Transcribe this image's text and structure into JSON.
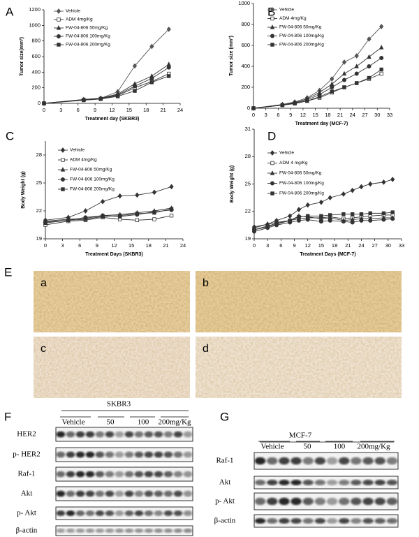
{
  "chart_data": [
    {
      "type": "line",
      "panel": "A",
      "y_label": "Tumor size(mm³)",
      "x_label": "Treatment day (SKBR3)",
      "x": [
        0,
        7,
        10,
        13,
        16,
        19,
        22
      ],
      "xlim": [
        0,
        24
      ],
      "xticks": [
        0,
        3,
        6,
        9,
        12,
        15,
        18,
        21,
        24
      ],
      "ylim": [
        0,
        1200
      ],
      "yticks": [
        0,
        200,
        400,
        600,
        800,
        1000,
        1200
      ],
      "series": [
        {
          "name": "Vehicle",
          "color": "#555555",
          "marker": "diamond",
          "values": [
            0,
            50,
            65,
            150,
            480,
            730,
            950
          ]
        },
        {
          "name": "ADM 4mg/Kg",
          "color": "#333333",
          "marker": "square-open",
          "values": [
            0,
            45,
            60,
            100,
            200,
            280,
            380
          ]
        },
        {
          "name": "FW-04-806 50mg/Kg",
          "color": "#333333",
          "marker": "triangle",
          "values": [
            0,
            50,
            65,
            120,
            250,
            350,
            500
          ]
        },
        {
          "name": "FW-04-806 100mg/Kg",
          "color": "#333333",
          "marker": "circle",
          "values": [
            0,
            45,
            60,
            110,
            220,
            320,
            460
          ]
        },
        {
          "name": "FW-04-806 200mg/Kg",
          "color": "#333333",
          "marker": "square",
          "values": [
            0,
            40,
            55,
            90,
            160,
            270,
            350
          ]
        }
      ]
    },
    {
      "type": "line",
      "panel": "B",
      "y_label": "Tumor size (mm³)",
      "x_label": "Treatment day (MCF-7)",
      "x": [
        0,
        7,
        10,
        13,
        16,
        19,
        22,
        25,
        28,
        31
      ],
      "xlim": [
        0,
        33
      ],
      "xticks": [
        0,
        3,
        6,
        9,
        12,
        15,
        18,
        21,
        24,
        27,
        30,
        33
      ],
      "ylim": [
        0,
        1000
      ],
      "yticks": [
        0,
        200,
        400,
        600,
        800,
        1000
      ],
      "series": [
        {
          "name": "Vehicle",
          "color": "#555555",
          "marker": "diamond",
          "values": [
            0,
            35,
            60,
            100,
            170,
            280,
            440,
            500,
            660,
            780
          ]
        },
        {
          "name": "ADM 4mg/Kg",
          "color": "#333333",
          "marker": "square-open",
          "values": [
            0,
            30,
            45,
            70,
            100,
            150,
            200,
            240,
            280,
            330
          ]
        },
        {
          "name": "FW-04-806 50mg/Kg",
          "color": "#333333",
          "marker": "triangle",
          "values": [
            0,
            35,
            55,
            90,
            150,
            230,
            330,
            400,
            490,
            580
          ]
        },
        {
          "name": "FW-04-806 100mg/Kg",
          "color": "#333333",
          "marker": "circle",
          "values": [
            0,
            30,
            50,
            80,
            130,
            200,
            270,
            330,
            400,
            480
          ]
        },
        {
          "name": "FW-04-806 200mg/Kg",
          "color": "#333333",
          "marker": "square",
          "values": [
            0,
            30,
            45,
            70,
            110,
            160,
            200,
            240,
            290,
            370
          ]
        }
      ]
    },
    {
      "type": "line",
      "panel": "C",
      "y_label": "Body Weight (g)",
      "x_label": "Treatment Days (SKBR3)",
      "x": [
        0,
        4,
        7,
        10,
        13,
        16,
        19,
        22
      ],
      "xlim": [
        0,
        24
      ],
      "xticks": [
        0,
        3,
        6,
        9,
        12,
        15,
        18,
        21,
        24
      ],
      "ylim": [
        19,
        29.5
      ],
      "yticks": [
        19,
        22,
        25,
        28
      ],
      "series": [
        {
          "name": "Vehicle",
          "color": "#333333",
          "marker": "diamond",
          "values": [
            21,
            21.3,
            22,
            23,
            23.6,
            23.7,
            24,
            24.6
          ]
        },
        {
          "name": "ADM 4mg/Kg",
          "color": "#333333",
          "marker": "square-open",
          "values": [
            20.5,
            20.9,
            21,
            21.3,
            21.1,
            21,
            21.1,
            21.5
          ]
        },
        {
          "name": "FW-04-806 50mg/Kg",
          "color": "#333333",
          "marker": "triangle",
          "values": [
            20.9,
            21.1,
            21.2,
            21.5,
            21.6,
            21.8,
            22,
            22.3
          ]
        },
        {
          "name": "FW-04-806 100mg/Kg",
          "color": "#333333",
          "marker": "circle",
          "values": [
            20.8,
            21,
            21.3,
            21.5,
            21.4,
            21.6,
            21.9,
            22.1
          ]
        },
        {
          "name": "FW-04-806 200mg/Kg",
          "color": "#333333",
          "marker": "square",
          "values": [
            20.7,
            21,
            21.1,
            21.4,
            21.5,
            21.7,
            21.8,
            22.2
          ]
        }
      ]
    },
    {
      "type": "line",
      "panel": "D",
      "y_label": "Body Weight (g)",
      "x_label": "Treatment Days (MCF-7)",
      "x": [
        0,
        3,
        5,
        8,
        10,
        12,
        15,
        17,
        20,
        22,
        24,
        26,
        29,
        31
      ],
      "xlim": [
        0,
        33
      ],
      "xticks": [
        0,
        3,
        6,
        9,
        12,
        15,
        18,
        21,
        24,
        27,
        30,
        33
      ],
      "ylim": [
        19,
        31
      ],
      "yticks": [
        19,
        22,
        25,
        28,
        31
      ],
      "series": [
        {
          "name": "Vehicle",
          "color": "#333333",
          "marker": "diamond",
          "values": [
            20.3,
            20.6,
            21,
            21.5,
            22.2,
            22.7,
            23,
            23.5,
            23.9,
            24.3,
            24.7,
            25,
            25.2,
            25.5
          ]
        },
        {
          "name": "ADM 4 mg/Kg",
          "color": "#333333",
          "marker": "square-open",
          "values": [
            20,
            20.3,
            20.6,
            21,
            21.2,
            21.3,
            21.3,
            21.4,
            21.2,
            21.3,
            21.4,
            21.5,
            21.6,
            21.6
          ]
        },
        {
          "name": "FW-04-806 50mg/Kg",
          "color": "#333333",
          "marker": "triangle",
          "values": [
            20.2,
            20.6,
            20.8,
            21,
            21.5,
            21.4,
            21.2,
            21.3,
            21,
            21.1,
            21.2,
            21.2,
            21.3,
            21.3
          ]
        },
        {
          "name": "FW-04-806 100mg/Kg",
          "color": "#333333",
          "marker": "circle",
          "values": [
            19.8,
            20.2,
            20.5,
            20.8,
            21,
            21.1,
            20.9,
            21,
            20.9,
            20.8,
            21,
            21,
            21.1,
            21.2
          ]
        },
        {
          "name": "FW-04-806 200mg/Kg",
          "color": "#333333",
          "marker": "square",
          "values": [
            20,
            20.4,
            20.7,
            21,
            21.4,
            21.5,
            21.5,
            21.6,
            21.7,
            21.7,
            21.7,
            21.8,
            21.8,
            21.9
          ]
        }
      ]
    }
  ],
  "histology": {
    "panel": "E",
    "labels": [
      "a",
      "b",
      "c",
      "d"
    ]
  },
  "blots": [
    {
      "panel": "F",
      "title": "SKBR3",
      "groups": [
        "Vehicle",
        "50",
        "100",
        "200mg/Kg"
      ],
      "rows": [
        "HER2",
        "p- HER2",
        "Raf-1",
        "Akt",
        "p- Akt",
        "β-actin"
      ]
    },
    {
      "panel": "G",
      "title": "MCF-7",
      "groups": [
        "Vehicle",
        "50",
        "100",
        "200mg/Kg"
      ],
      "rows": [
        "Raf-1",
        "Akt",
        "p- Akt",
        "β-actin"
      ]
    }
  ]
}
